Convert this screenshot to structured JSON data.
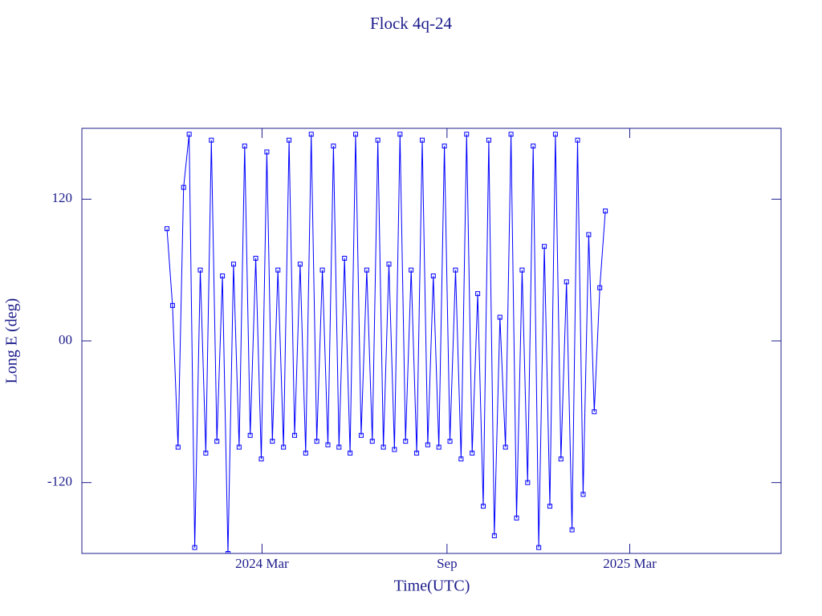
{
  "chart_data": {
    "type": "line",
    "title": "Flock 4q-24",
    "xlabel": "Time(UTC)",
    "ylabel": "Long E (deg)",
    "color": "#0000ff",
    "axis_color": "#1c1c8c",
    "x": [
      2023.91,
      2023.925,
      2023.94,
      2023.955,
      2023.97,
      2023.985,
      2024.0,
      2024.015,
      2024.03,
      2024.045,
      2024.06,
      2024.075,
      2024.09,
      2024.105,
      2024.12,
      2024.135,
      2024.15,
      2024.165,
      2024.18,
      2024.195,
      2024.21,
      2024.225,
      2024.24,
      2024.255,
      2024.27,
      2024.285,
      2024.3,
      2024.315,
      2024.33,
      2024.345,
      2024.36,
      2024.375,
      2024.39,
      2024.405,
      2024.42,
      2024.435,
      2024.45,
      2024.465,
      2024.48,
      2024.495,
      2024.51,
      2024.525,
      2024.54,
      2024.555,
      2024.57,
      2024.585,
      2024.6,
      2024.615,
      2024.63,
      2024.645,
      2024.66,
      2024.675,
      2024.69,
      2024.705,
      2024.72,
      2024.735,
      2024.75,
      2024.765,
      2024.78,
      2024.795,
      2024.81,
      2024.825,
      2024.84,
      2024.855,
      2024.87,
      2024.885,
      2024.9,
      2024.915,
      2024.93,
      2024.945,
      2024.96,
      2024.975,
      2024.99,
      2025.005,
      2025.02,
      2025.035,
      2025.05,
      2025.065,
      2025.08,
      2025.095
    ],
    "values": [
      95,
      30,
      -90,
      130,
      175,
      -175,
      60,
      -95,
      170,
      -85,
      55,
      -180,
      65,
      -90,
      165,
      -80,
      70,
      -100,
      160,
      -85,
      60,
      -90,
      170,
      -80,
      65,
      -95,
      175,
      -85,
      60,
      -88,
      165,
      -90,
      70,
      -95,
      175,
      -80,
      60,
      -85,
      170,
      -90,
      65,
      -92,
      175,
      -85,
      60,
      -95,
      170,
      -88,
      55,
      -90,
      165,
      -85,
      60,
      -100,
      175,
      -95,
      40,
      -140,
      170,
      -165,
      20,
      -90,
      175,
      -150,
      60,
      -120,
      165,
      -175,
      80,
      -140,
      175,
      -100,
      50,
      -160,
      170,
      -130,
      90,
      -60,
      45,
      110
    ],
    "xlim": [
      2023.68,
      2025.57
    ],
    "xticks": [
      {
        "value": 2024.167,
        "label": "2024 Mar"
      },
      {
        "value": 2024.667,
        "label": "Sep"
      },
      {
        "value": 2025.161,
        "label": "2025 Mar"
      }
    ],
    "ylim": [
      -180,
      180
    ],
    "yticks": [
      120,
      {
        "value": 0,
        "label": "00"
      },
      -120
    ]
  }
}
